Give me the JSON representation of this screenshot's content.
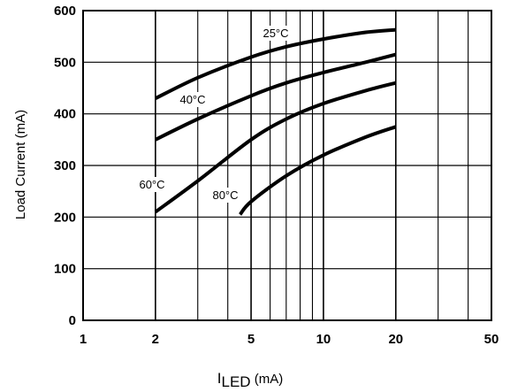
{
  "chart_data": {
    "type": "line",
    "x_scale": "log",
    "xlim": [
      1,
      50
    ],
    "ylim": [
      0,
      600
    ],
    "grid": true,
    "xlabel": "ILED (mA)",
    "xlabel_main": "I",
    "xlabel_sub": "LED",
    "xlabel_unit": " (mA)",
    "ylabel": "Load Current (mA)",
    "x_ticks": [
      1,
      2,
      5,
      10,
      20,
      50
    ],
    "y_ticks": [
      0,
      100,
      200,
      300,
      400,
      500,
      600
    ],
    "series": [
      {
        "name": "25°C",
        "x": [
          2,
          3,
          5,
          7,
          10,
          15,
          20
        ],
        "y": [
          430,
          470,
          510,
          530,
          545,
          558,
          563
        ]
      },
      {
        "name": "40°C",
        "x": [
          2,
          3,
          5,
          7,
          10,
          15,
          20
        ],
        "y": [
          350,
          390,
          435,
          460,
          480,
          500,
          515
        ]
      },
      {
        "name": "60°C",
        "x": [
          2,
          3,
          5,
          7,
          10,
          15,
          20
        ],
        "y": [
          210,
          270,
          350,
          390,
          420,
          445,
          460
        ]
      },
      {
        "name": "80°C",
        "x": [
          4.5,
          5,
          7,
          10,
          15,
          20
        ],
        "y": [
          205,
          230,
          280,
          320,
          355,
          375
        ]
      }
    ]
  }
}
